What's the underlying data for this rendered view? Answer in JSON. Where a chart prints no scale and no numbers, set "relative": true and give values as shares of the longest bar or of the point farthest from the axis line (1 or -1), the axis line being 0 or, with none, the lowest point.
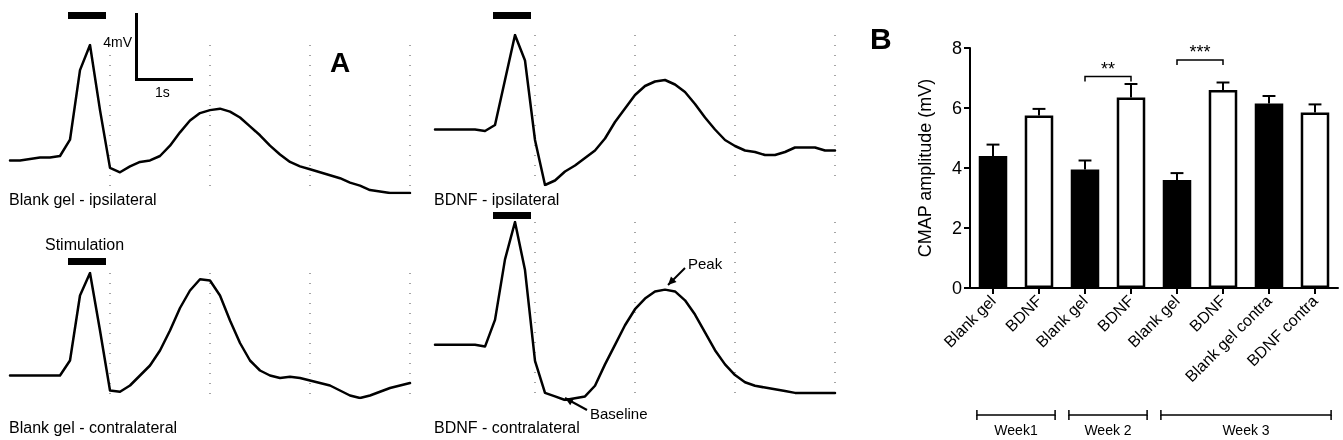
{
  "chart_data": [
    {
      "type": "line",
      "title": "Blank gel - ipsilateral",
      "annotations": [
        "4mV",
        "1s",
        "A"
      ],
      "relative": true,
      "grid": "x",
      "categories": [
        null,
        null,
        null,
        null,
        null,
        null,
        null,
        null,
        null,
        null,
        null,
        null,
        null,
        null,
        null,
        null,
        null,
        null,
        null,
        null,
        null,
        null,
        null,
        null,
        null,
        null,
        null,
        null,
        null,
        null,
        null,
        null,
        null,
        null,
        null,
        null,
        null,
        null,
        null,
        null,
        null
      ],
      "series": [
        {
          "color": "#000000",
          "values": [
            0.22,
            0.22,
            0.23,
            0.24,
            0.24,
            0.25,
            0.36,
            0.83,
            1,
            0.56,
            0.17,
            0.14,
            0.18,
            0.21,
            0.22,
            0.25,
            0.32,
            0.41,
            0.49,
            0.54,
            0.56,
            0.57,
            0.55,
            0.51,
            0.45,
            0.39,
            0.32,
            0.26,
            0.21,
            0.18,
            0.16,
            0.14,
            0.12,
            0.1,
            0.07,
            0.05,
            0.02,
            0.01,
            0,
            0,
            0
          ]
        }
      ]
    },
    {
      "type": "line",
      "title": "BDNF - ipsilateral",
      "relative": true,
      "grid": "x",
      "categories": [
        null,
        null,
        null,
        null,
        null,
        null,
        null,
        null,
        null,
        null,
        null,
        null,
        null,
        null,
        null,
        null,
        null,
        null,
        null,
        null,
        null,
        null,
        null,
        null,
        null,
        null,
        null,
        null,
        null,
        null,
        null,
        null,
        null,
        null,
        null,
        null,
        null,
        null,
        null,
        null,
        null
      ],
      "series": [
        {
          "color": "#000000",
          "values": [
            0.37,
            0.37,
            0.37,
            0.37,
            0.37,
            0.36,
            0.4,
            0.7,
            1,
            0.83,
            0.3,
            0,
            0.03,
            0.09,
            0.13,
            0.18,
            0.23,
            0.31,
            0.42,
            0.51,
            0.6,
            0.66,
            0.69,
            0.7,
            0.67,
            0.62,
            0.54,
            0.45,
            0.37,
            0.3,
            0.26,
            0.23,
            0.22,
            0.2,
            0.2,
            0.22,
            0.25,
            0.25,
            0.25,
            0.23,
            0.23
          ]
        }
      ]
    },
    {
      "type": "line",
      "title": "Blank gel - contralateral",
      "annotations": [
        "Stimulation"
      ],
      "relative": true,
      "grid": "x",
      "categories": [
        null,
        null,
        null,
        null,
        null,
        null,
        null,
        null,
        null,
        null,
        null,
        null,
        null,
        null,
        null,
        null,
        null,
        null,
        null,
        null,
        null,
        null,
        null,
        null,
        null,
        null,
        null,
        null,
        null,
        null,
        null,
        null,
        null,
        null,
        null,
        null,
        null,
        null,
        null,
        null,
        null
      ],
      "series": [
        {
          "color": "#000000",
          "values": [
            0.18,
            0.18,
            0.18,
            0.18,
            0.18,
            0.18,
            0.3,
            0.82,
            1,
            0.54,
            0.06,
            0.05,
            0.1,
            0.18,
            0.26,
            0.38,
            0.54,
            0.72,
            0.86,
            0.95,
            0.94,
            0.82,
            0.62,
            0.44,
            0.3,
            0.22,
            0.18,
            0.16,
            0.17,
            0.16,
            0.14,
            0.12,
            0.1,
            0.06,
            0.02,
            0,
            0.02,
            0.05,
            0.08,
            0.1,
            0.12
          ]
        }
      ]
    },
    {
      "type": "line",
      "title": "BDNF - contralateral",
      "annotations": [
        "Peak",
        "Baseline"
      ],
      "relative": true,
      "grid": "x",
      "categories": [
        null,
        null,
        null,
        null,
        null,
        null,
        null,
        null,
        null,
        null,
        null,
        null,
        null,
        null,
        null,
        null,
        null,
        null,
        null,
        null,
        null,
        null,
        null,
        null,
        null,
        null,
        null,
        null,
        null,
        null,
        null,
        null,
        null,
        null,
        null,
        null,
        null,
        null,
        null,
        null,
        null
      ],
      "series": [
        {
          "color": "#000000",
          "values": [
            0.31,
            0.31,
            0.31,
            0.31,
            0.31,
            0.3,
            0.45,
            0.79,
            1,
            0.73,
            0.22,
            0.04,
            0.02,
            0,
            0.01,
            0.02,
            0.08,
            0.2,
            0.31,
            0.42,
            0.51,
            0.57,
            0.61,
            0.62,
            0.61,
            0.56,
            0.48,
            0.38,
            0.28,
            0.2,
            0.14,
            0.1,
            0.08,
            0.07,
            0.06,
            0.05,
            0.04,
            0.04,
            0.04,
            0.04,
            0.04
          ]
        }
      ]
    },
    {
      "type": "bar",
      "ylabel": "CMAP amplitude (mV)",
      "annotations": [
        "B",
        "**",
        "***",
        "Week1",
        "Week 2",
        "Week 3"
      ],
      "categories": [
        "Blank gel",
        "BDNF",
        "Blank gel",
        "BDNF",
        "Blank gel",
        "BDNF",
        "Blank gel contra",
        "BDNF contra"
      ],
      "values": [
        4.4,
        5.75,
        3.95,
        6.35,
        3.6,
        6.6,
        6.15,
        5.85
      ],
      "colors": [
        "#000000",
        "#ffffff",
        "#000000",
        "#ffffff",
        "#000000",
        "#ffffff",
        "#000000",
        "#ffffff"
      ],
      "errors": [
        [
          4.4,
          4.78
        ],
        [
          5.75,
          5.97
        ],
        [
          3.95,
          4.25
        ],
        [
          6.35,
          6.8
        ],
        [
          3.6,
          3.83
        ],
        [
          6.6,
          6.85
        ],
        [
          6.15,
          6.4
        ],
        [
          5.85,
          6.12
        ]
      ],
      "ylim": [
        0,
        8
      ],
      "yticks": [
        0,
        2,
        4,
        6,
        8
      ]
    }
  ]
}
